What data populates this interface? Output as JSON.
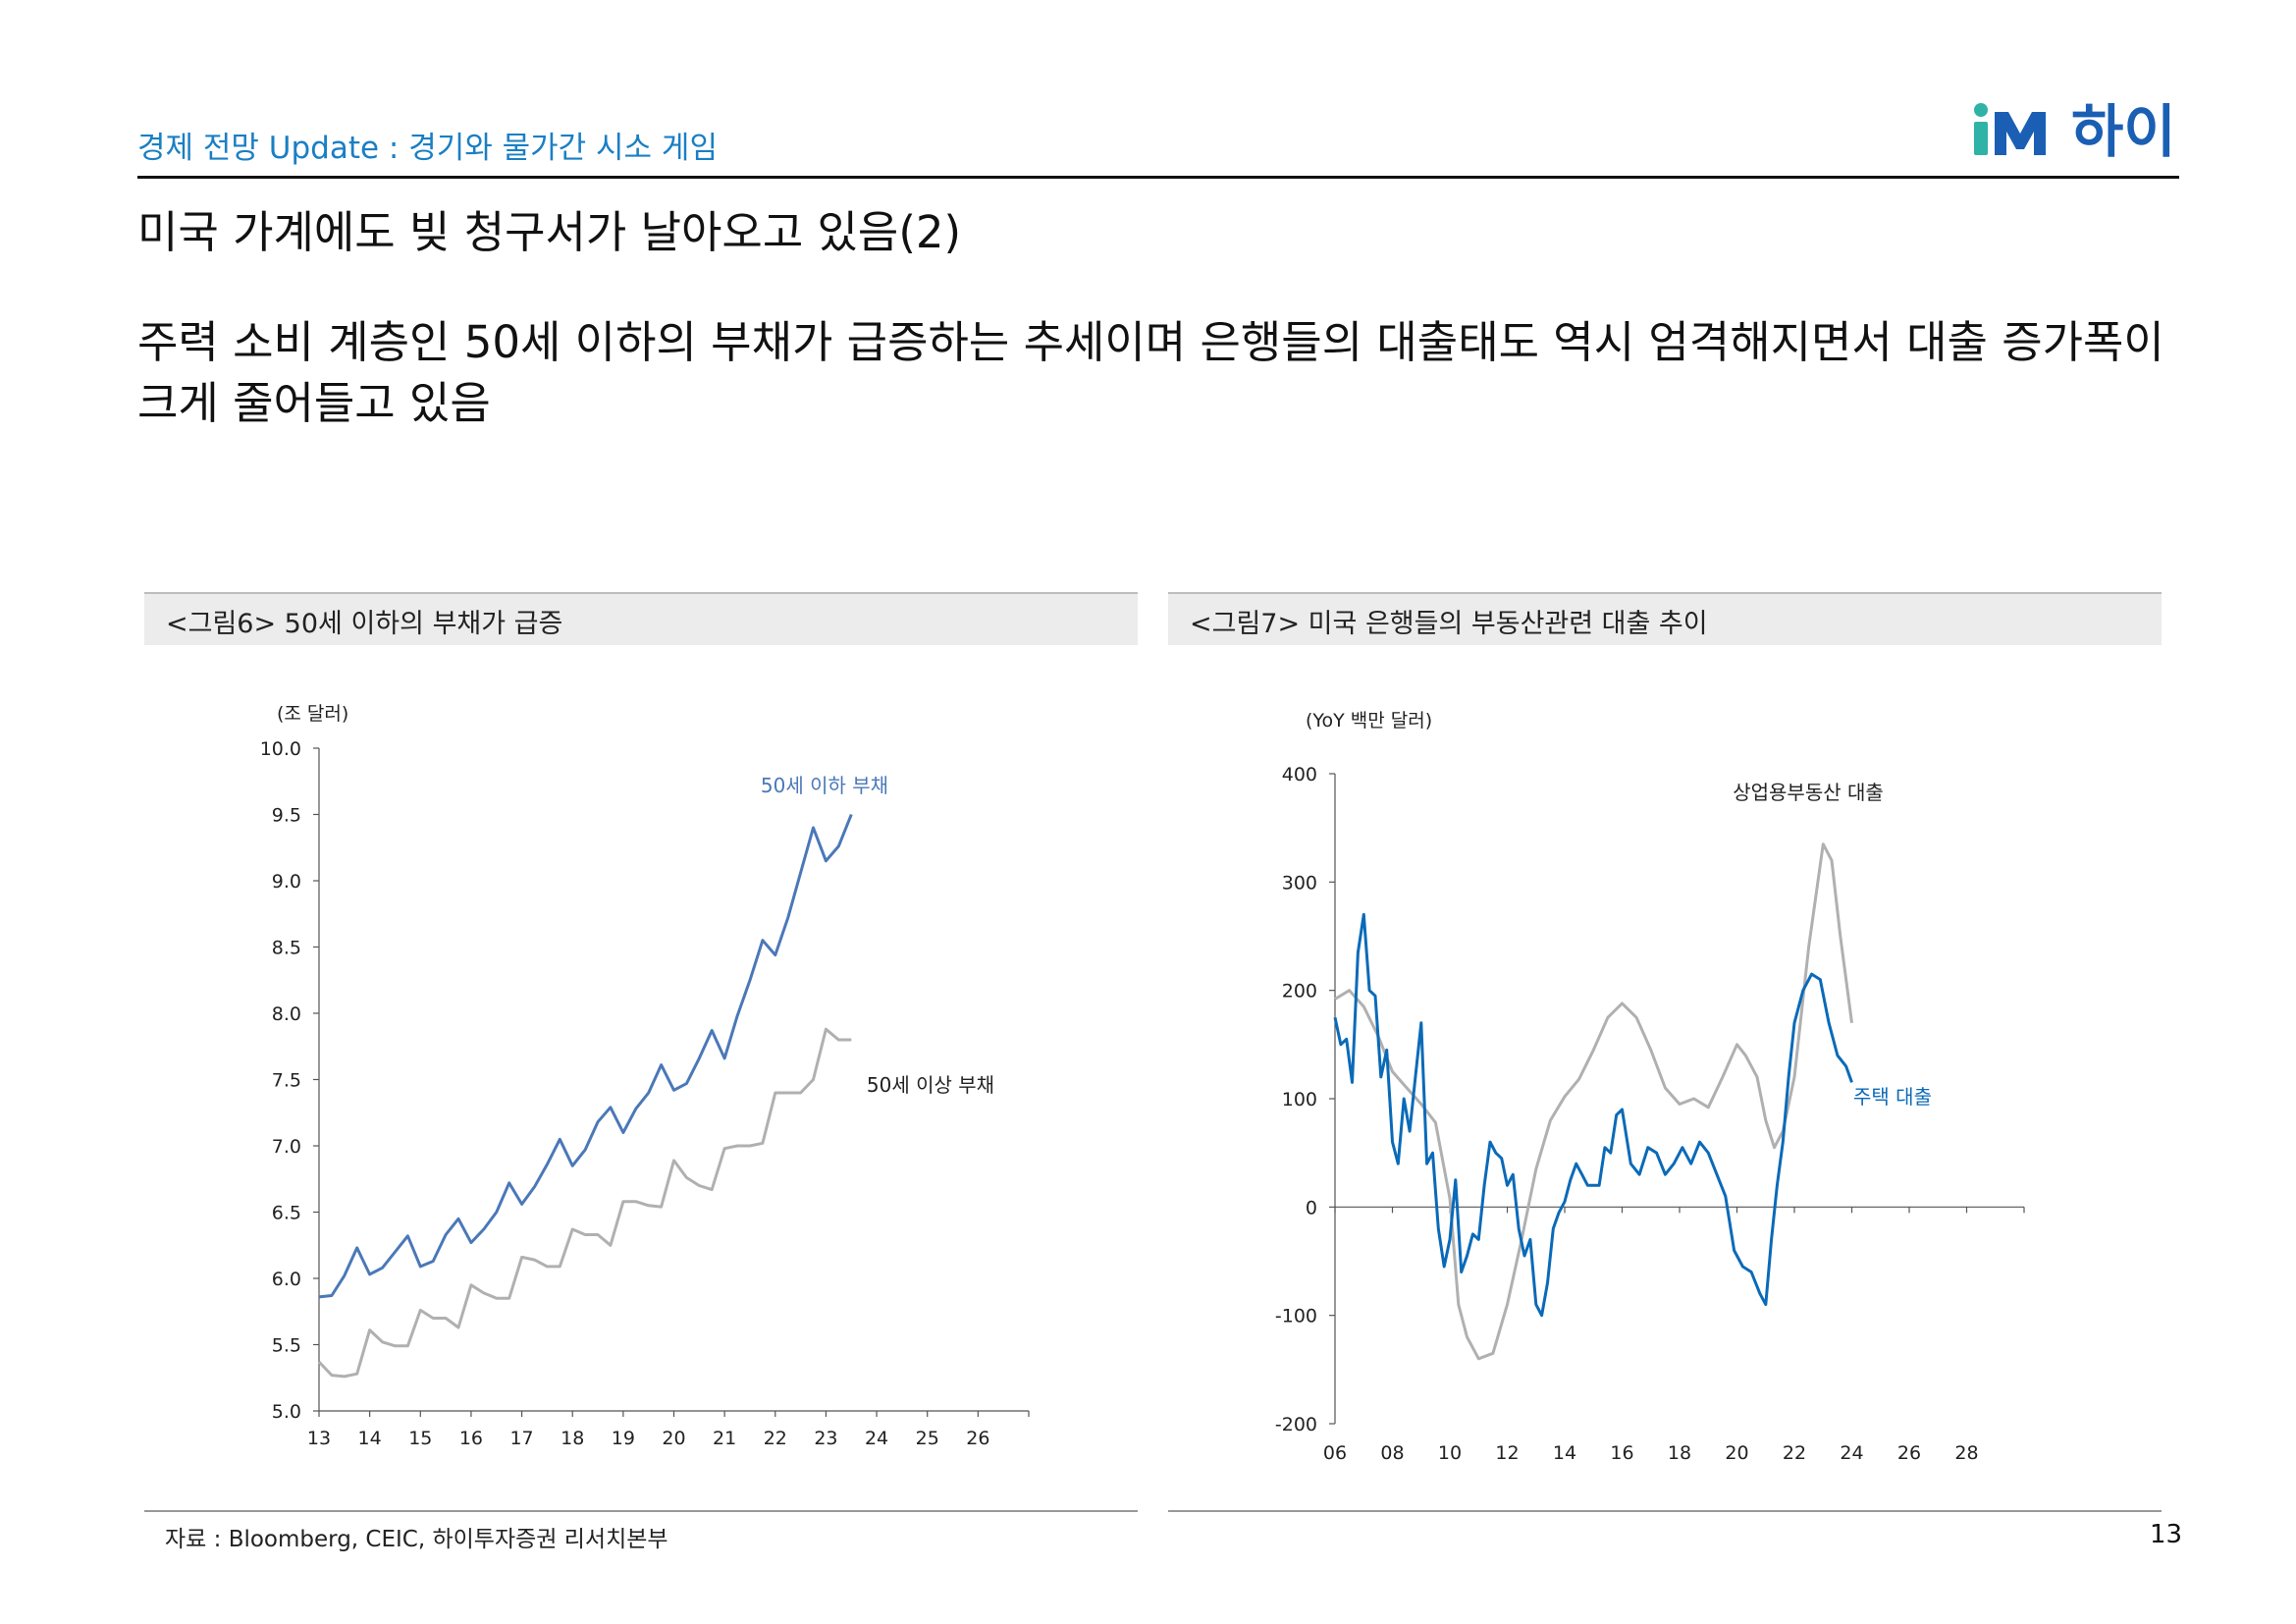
{
  "header": {
    "subtitle": "경제 전망 Update : 경기와 물가간 시소 게임",
    "logo_text": "하이"
  },
  "slide": {
    "title": "미국 가계에도 빚 청구서가 날아오고 있음(2)",
    "summary": "주력 소비 계층인 50세 이하의 부채가 급증하는 추세이며 은행들의 대출태도 역시 엄격해지면서 대출 증가폭이 크게 줄어들고 있음"
  },
  "panels": [
    {
      "label": "<그림6> 50세 이하의 부채가 급증"
    },
    {
      "label": "<그림7> 미국 은행들의 부동산관련 대출 추이"
    }
  ],
  "footer": {
    "source": "자료 : Bloomberg, CEIC, 하이투자증권 리서치본부",
    "page": "13"
  },
  "colors": {
    "blue_series": "#4a78b8",
    "gray_series": "#b0b0b0",
    "housing": "#0a6ab8",
    "accent": "#1a7fc4"
  },
  "chart_data": [
    {
      "type": "line",
      "unit_label": "(조 달러)",
      "ylim": [
        5.0,
        10.0
      ],
      "yticks": [
        "5.0",
        "5.5",
        "6.0",
        "6.5",
        "7.0",
        "7.5",
        "8.0",
        "8.5",
        "9.0",
        "9.5",
        "10.0"
      ],
      "xlim": [
        13,
        27
      ],
      "xticks": [
        "13",
        "14",
        "15",
        "16",
        "17",
        "18",
        "19",
        "20",
        "21",
        "22",
        "23",
        "24",
        "25",
        "26"
      ],
      "series": [
        {
          "name": "50세 이하 부채",
          "color": "#4a78b8",
          "x": [
            13.0,
            13.25,
            13.5,
            13.75,
            14.0,
            14.25,
            14.5,
            14.75,
            15.0,
            15.25,
            15.5,
            15.75,
            16.0,
            16.25,
            16.5,
            16.75,
            17.0,
            17.25,
            17.5,
            17.75,
            18.0,
            18.25,
            18.5,
            18.75,
            19.0,
            19.25,
            19.5,
            19.75,
            20.0,
            20.25,
            20.5,
            20.75,
            21.0,
            21.25,
            21.5,
            21.75,
            22.0,
            22.25,
            22.5,
            22.75,
            23.0,
            23.25,
            23.5
          ],
          "values": [
            5.86,
            5.87,
            6.02,
            6.23,
            6.03,
            6.08,
            6.2,
            6.32,
            6.09,
            6.13,
            6.33,
            6.45,
            6.27,
            6.37,
            6.5,
            6.72,
            6.56,
            6.69,
            6.86,
            7.05,
            6.85,
            6.97,
            7.18,
            7.29,
            7.1,
            7.28,
            7.4,
            7.61,
            7.42,
            7.47,
            7.66,
            7.87,
            7.66,
            7.98,
            8.25,
            8.55,
            8.44,
            8.72,
            9.06,
            9.4,
            9.15,
            9.26,
            9.5
          ]
        },
        {
          "name": "50세 이상 부채",
          "color": "#b0b0b0",
          "x": [
            13.0,
            13.25,
            13.5,
            13.75,
            14.0,
            14.25,
            14.5,
            14.75,
            15.0,
            15.25,
            15.5,
            15.75,
            16.0,
            16.25,
            16.5,
            16.75,
            17.0,
            17.25,
            17.5,
            17.75,
            18.0,
            18.25,
            18.5,
            18.75,
            19.0,
            19.25,
            19.5,
            19.75,
            20.0,
            20.25,
            20.5,
            20.75,
            21.0,
            21.25,
            21.5,
            21.75,
            22.0,
            22.25,
            22.5,
            22.75,
            23.0,
            23.25,
            23.5
          ],
          "values": [
            5.37,
            5.27,
            5.26,
            5.28,
            5.61,
            5.52,
            5.49,
            5.49,
            5.76,
            5.7,
            5.7,
            5.63,
            5.95,
            5.89,
            5.85,
            5.85,
            6.16,
            6.14,
            6.09,
            6.09,
            6.37,
            6.33,
            6.33,
            6.25,
            6.58,
            6.58,
            6.55,
            6.54,
            6.89,
            6.76,
            6.7,
            6.67,
            6.98,
            7.0,
            7.0,
            7.02,
            7.4,
            7.4,
            7.4,
            7.5,
            7.88,
            7.8,
            7.8
          ]
        }
      ]
    },
    {
      "type": "line",
      "unit_label": "(YoY 백만 달러)",
      "ylim": [
        -200,
        400
      ],
      "yticks": [
        "-200",
        "-100",
        "0",
        "100",
        "200",
        "300",
        "400"
      ],
      "xlim": [
        6,
        30
      ],
      "xticks": [
        "06",
        "08",
        "10",
        "12",
        "14",
        "16",
        "18",
        "20",
        "22",
        "24",
        "26",
        "28"
      ],
      "series": [
        {
          "name": "상업용부동산 대출",
          "color": "#b0b0b0",
          "x": [
            6.0,
            6.5,
            7.0,
            7.5,
            8.0,
            8.5,
            9.0,
            9.5,
            10.0,
            10.3,
            10.6,
            11.0,
            11.5,
            12.0,
            12.5,
            13.0,
            13.5,
            14.0,
            14.5,
            15.0,
            15.5,
            16.0,
            16.5,
            17.0,
            17.5,
            18.0,
            18.5,
            19.0,
            19.5,
            20.0,
            20.3,
            20.7,
            21.0,
            21.3,
            21.6,
            22.0,
            22.5,
            23.0,
            23.3,
            23.6,
            24.0
          ],
          "values": [
            192,
            200,
            185,
            158,
            125,
            110,
            95,
            78,
            8,
            -90,
            -120,
            -140,
            -135,
            -90,
            -30,
            35,
            80,
            102,
            118,
            145,
            175,
            188,
            175,
            145,
            110,
            95,
            100,
            92,
            120,
            150,
            140,
            120,
            80,
            55,
            70,
            120,
            240,
            335,
            320,
            250,
            170
          ]
        },
        {
          "name": "주택 대출",
          "color": "#0a6ab8",
          "x": [
            6.0,
            6.2,
            6.4,
            6.6,
            6.8,
            7.0,
            7.2,
            7.4,
            7.6,
            7.8,
            8.0,
            8.2,
            8.4,
            8.6,
            8.8,
            9.0,
            9.2,
            9.4,
            9.6,
            9.8,
            10.0,
            10.2,
            10.4,
            10.6,
            10.8,
            11.0,
            11.2,
            11.4,
            11.6,
            11.8,
            12.0,
            12.2,
            12.4,
            12.6,
            12.8,
            13.0,
            13.2,
            13.4,
            13.6,
            13.8,
            14.0,
            14.2,
            14.4,
            14.6,
            14.8,
            15.0,
            15.2,
            15.4,
            15.6,
            15.8,
            16.0,
            16.3,
            16.6,
            16.9,
            17.2,
            17.5,
            17.8,
            18.1,
            18.4,
            18.7,
            19.0,
            19.3,
            19.6,
            19.9,
            20.2,
            20.5,
            20.8,
            21.0,
            21.2,
            21.4,
            21.6,
            21.8,
            22.0,
            22.3,
            22.6,
            22.9,
            23.2,
            23.5,
            23.8,
            24.0
          ],
          "values": [
            175,
            150,
            155,
            115,
            235,
            270,
            200,
            195,
            120,
            145,
            60,
            40,
            100,
            70,
            120,
            170,
            40,
            50,
            -20,
            -55,
            -30,
            25,
            -60,
            -45,
            -25,
            -30,
            20,
            60,
            50,
            45,
            20,
            30,
            -20,
            -45,
            -30,
            -90,
            -100,
            -70,
            -20,
            -5,
            5,
            25,
            40,
            30,
            20,
            20,
            20,
            55,
            50,
            85,
            90,
            40,
            30,
            55,
            50,
            30,
            40,
            55,
            40,
            60,
            50,
            30,
            10,
            -40,
            -55,
            -60,
            -80,
            -90,
            -30,
            20,
            60,
            120,
            170,
            200,
            215,
            210,
            170,
            140,
            130,
            115
          ]
        }
      ]
    }
  ]
}
